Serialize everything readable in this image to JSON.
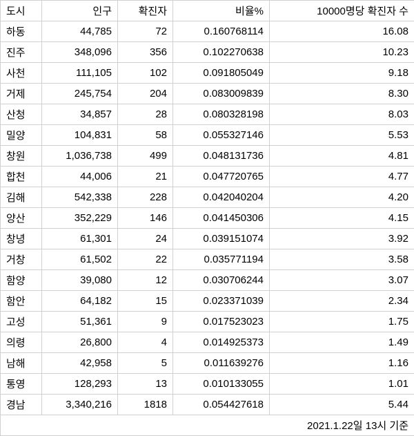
{
  "table": {
    "columns": [
      "도시",
      "인구",
      "확진자",
      "비율%",
      "10000명당 확진자 수"
    ],
    "rows": [
      {
        "city": "하동",
        "population": "44,785",
        "confirmed": "72",
        "ratio": "0.160768114",
        "per10k": "16.08"
      },
      {
        "city": "진주",
        "population": "348,096",
        "confirmed": "356",
        "ratio": "0.102270638",
        "per10k": "10.23"
      },
      {
        "city": "사천",
        "population": "111,105",
        "confirmed": "102",
        "ratio": "0.091805049",
        "per10k": "9.18"
      },
      {
        "city": "거제",
        "population": "245,754",
        "confirmed": "204",
        "ratio": "0.083009839",
        "per10k": "8.30"
      },
      {
        "city": "산청",
        "population": "34,857",
        "confirmed": "28",
        "ratio": "0.080328198",
        "per10k": "8.03"
      },
      {
        "city": "밀양",
        "population": "104,831",
        "confirmed": "58",
        "ratio": "0.055327146",
        "per10k": "5.53"
      },
      {
        "city": "창원",
        "population": "1,036,738",
        "confirmed": "499",
        "ratio": "0.048131736",
        "per10k": "4.81"
      },
      {
        "city": "합천",
        "population": "44,006",
        "confirmed": "21",
        "ratio": "0.047720765",
        "per10k": "4.77"
      },
      {
        "city": "김해",
        "population": "542,338",
        "confirmed": "228",
        "ratio": "0.042040204",
        "per10k": "4.20"
      },
      {
        "city": "양산",
        "population": "352,229",
        "confirmed": "146",
        "ratio": "0.041450306",
        "per10k": "4.15"
      },
      {
        "city": "창녕",
        "population": "61,301",
        "confirmed": "24",
        "ratio": "0.039151074",
        "per10k": "3.92"
      },
      {
        "city": "거창",
        "population": "61,502",
        "confirmed": "22",
        "ratio": "0.035771194",
        "per10k": "3.58"
      },
      {
        "city": "함양",
        "population": "39,080",
        "confirmed": "12",
        "ratio": "0.030706244",
        "per10k": "3.07"
      },
      {
        "city": "함안",
        "population": "64,182",
        "confirmed": "15",
        "ratio": "0.023371039",
        "per10k": "2.34"
      },
      {
        "city": "고성",
        "population": "51,361",
        "confirmed": "9",
        "ratio": "0.017523023",
        "per10k": "1.75"
      },
      {
        "city": "의령",
        "population": "26,800",
        "confirmed": "4",
        "ratio": "0.014925373",
        "per10k": "1.49"
      },
      {
        "city": "남해",
        "population": "42,958",
        "confirmed": "5",
        "ratio": "0.011639276",
        "per10k": "1.16"
      },
      {
        "city": "통영",
        "population": "128,293",
        "confirmed": "13",
        "ratio": "0.010133055",
        "per10k": "1.01"
      },
      {
        "city": "경남",
        "population": "3,340,216",
        "confirmed": "1818",
        "ratio": "0.054427618",
        "per10k": "5.44"
      }
    ],
    "footer_note": "2021.1.22일 13시 기준"
  }
}
